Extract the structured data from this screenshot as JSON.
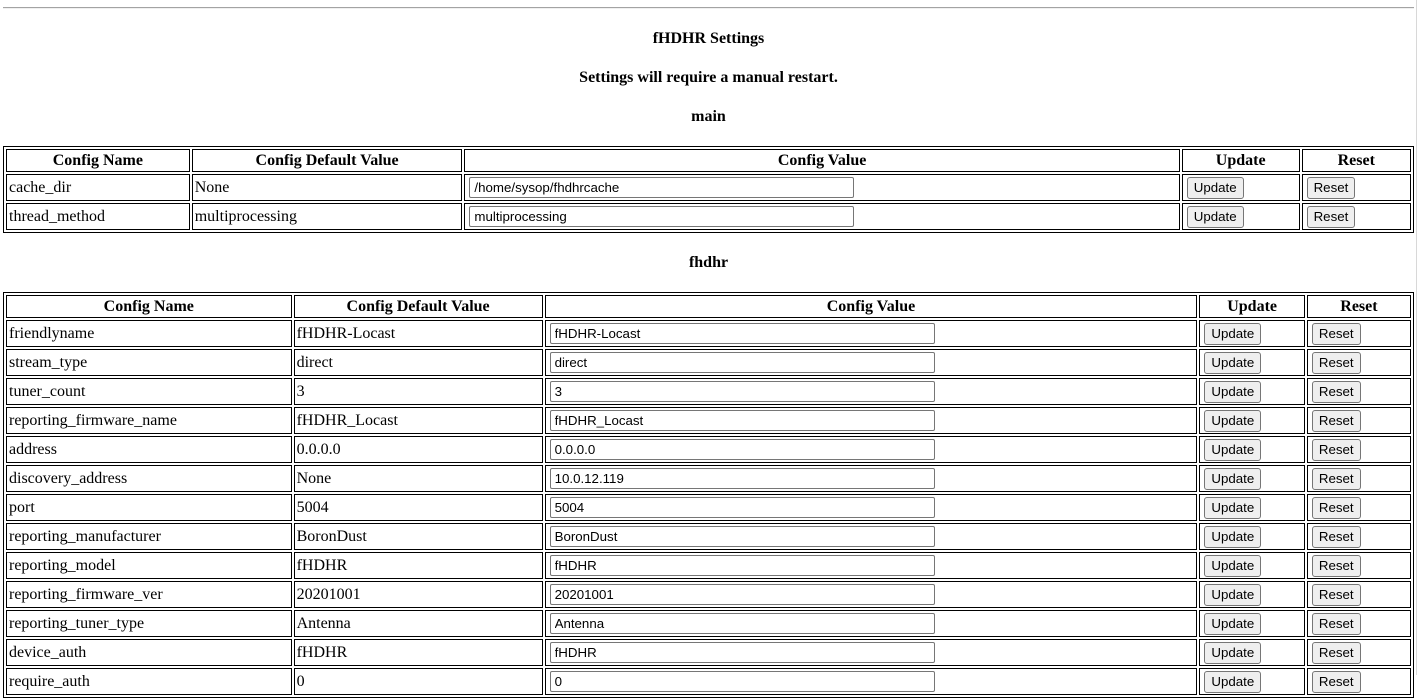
{
  "page": {
    "title": "fHDHR Settings",
    "subtitle": "Settings will require a manual restart."
  },
  "buttons": {
    "update": "Update",
    "reset": "Reset"
  },
  "colors": {
    "table_border": "#000000",
    "control_border": "#767676",
    "button_bg": "#efefef",
    "page_bg": "#ffffff",
    "text": "#000000"
  },
  "sections": [
    {
      "heading": "main",
      "columns": [
        "Config Name",
        "Config Default Value",
        "Config Value",
        "Update",
        "Reset"
      ],
      "rows": [
        {
          "name": "cache_dir",
          "default": "None",
          "value": "/home/sysop/fhdhrcache"
        },
        {
          "name": "thread_method",
          "default": "multiprocessing",
          "value": "multiprocessing"
        }
      ]
    },
    {
      "heading": "fhdhr",
      "columns": [
        "Config Name",
        "Config Default Value",
        "Config Value",
        "Update",
        "Reset"
      ],
      "rows": [
        {
          "name": "friendlyname",
          "default": "fHDHR-Locast",
          "value": "fHDHR-Locast"
        },
        {
          "name": "stream_type",
          "default": "direct",
          "value": "direct"
        },
        {
          "name": "tuner_count",
          "default": "3",
          "value": "3"
        },
        {
          "name": "reporting_firmware_name",
          "default": "fHDHR_Locast",
          "value": "fHDHR_Locast"
        },
        {
          "name": "address",
          "default": "0.0.0.0",
          "value": "0.0.0.0"
        },
        {
          "name": "discovery_address",
          "default": "None",
          "value": "10.0.12.119"
        },
        {
          "name": "port",
          "default": "5004",
          "value": "5004"
        },
        {
          "name": "reporting_manufacturer",
          "default": "BoronDust",
          "value": "BoronDust"
        },
        {
          "name": "reporting_model",
          "default": "fHDHR",
          "value": "fHDHR"
        },
        {
          "name": "reporting_firmware_ver",
          "default": "20201001",
          "value": "20201001"
        },
        {
          "name": "reporting_tuner_type",
          "default": "Antenna",
          "value": "Antenna"
        },
        {
          "name": "device_auth",
          "default": "fHDHR",
          "value": "fHDHR"
        },
        {
          "name": "require_auth",
          "default": "0",
          "value": "0"
        }
      ]
    }
  ]
}
